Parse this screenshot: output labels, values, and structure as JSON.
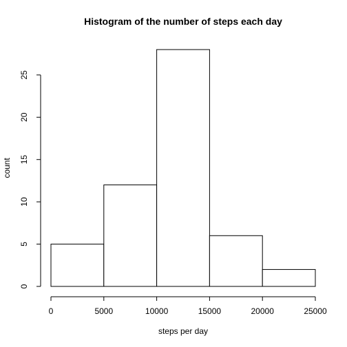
{
  "chart_data": {
    "type": "bar",
    "title": "Histogram of the number of steps each day",
    "xlabel": "steps per day",
    "ylabel": "count",
    "bins": [
      {
        "start": 0,
        "end": 5000,
        "count": 5
      },
      {
        "start": 5000,
        "end": 10000,
        "count": 12
      },
      {
        "start": 10000,
        "end": 15000,
        "count": 28
      },
      {
        "start": 15000,
        "end": 20000,
        "count": 6
      },
      {
        "start": 20000,
        "end": 25000,
        "count": 2
      }
    ],
    "x_ticks": [
      0,
      5000,
      10000,
      15000,
      20000,
      25000
    ],
    "y_ticks": [
      0,
      5,
      10,
      15,
      20,
      25
    ],
    "xlim": [
      0,
      25000
    ],
    "ylim": [
      0,
      29
    ],
    "grid": false,
    "colors": {
      "bar_fill": "#ffffff",
      "bar_stroke": "#000000"
    }
  }
}
